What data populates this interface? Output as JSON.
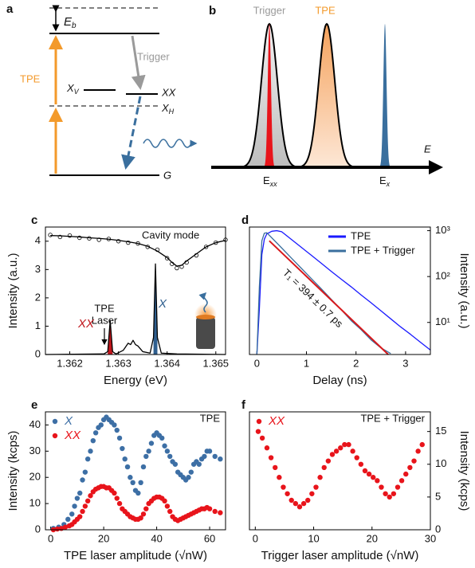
{
  "panel_a": {
    "label": "a",
    "eb": {
      "main": "E",
      "sub": "b"
    },
    "tpe": "TPE",
    "trigger": "Trigger",
    "xv": {
      "main": "X",
      "sub": "V"
    },
    "xx": "XX",
    "xh": {
      "main": "X",
      "sub": "H"
    },
    "g": "G"
  },
  "panel_b": {
    "label": "b",
    "trigger": "Trigger",
    "tpe": "TPE",
    "axis": "E",
    "exx": {
      "main": "E",
      "sub": "xx"
    },
    "ex": {
      "main": "E",
      "sub": "x"
    }
  },
  "chart_data": [
    {
      "label": "c",
      "type": "line",
      "xlabel": "Energy (eV)",
      "ylabel": "Intensity (a.u.)",
      "y_side": "left",
      "xlim": [
        1.3615,
        1.3652
      ],
      "xticks": [
        1.362,
        1.363,
        1.364,
        1.365
      ],
      "ylim": [
        0,
        4.5
      ],
      "yticks": [
        0,
        1,
        2,
        3,
        4
      ],
      "annotations": [
        "Cavity mode",
        "TPE",
        "Laser",
        "X",
        "XX"
      ],
      "series": [
        {
          "mode": "markers",
          "color": "#000000",
          "x": [
            1.3616,
            1.3618,
            1.362,
            1.3622,
            1.3624,
            1.3626,
            1.3628,
            1.363,
            1.3632,
            1.3634,
            1.3636,
            1.3638,
            1.364,
            1.3641,
            1.3642,
            1.3643,
            1.3644,
            1.3646,
            1.3648,
            1.365,
            1.3652
          ],
          "values": [
            4.22,
            4.15,
            4.2,
            4.12,
            4.1,
            4.05,
            4.08,
            4.0,
            3.95,
            3.92,
            3.8,
            3.7,
            3.4,
            3.2,
            3.05,
            3.1,
            3.25,
            3.5,
            3.8,
            3.95,
            4.05
          ]
        },
        {
          "mode": "line",
          "color": "#000000",
          "x": [
            1.3616,
            1.3618,
            1.362,
            1.3622,
            1.3624,
            1.3626,
            1.3628,
            1.363,
            1.3632,
            1.3634,
            1.3636,
            1.3638,
            1.364,
            1.3641,
            1.3642,
            1.3643,
            1.3644,
            1.3646,
            1.3648,
            1.365,
            1.3652
          ],
          "values": [
            4.2,
            4.19,
            4.17,
            4.15,
            4.12,
            4.1,
            4.07,
            4.03,
            3.98,
            3.92,
            3.82,
            3.65,
            3.42,
            3.25,
            3.12,
            3.15,
            3.3,
            3.55,
            3.8,
            3.95,
            4.03
          ]
        },
        {
          "mode": "fill",
          "color": "#c0161c",
          "x": [
            1.36278,
            1.36283,
            1.36288
          ],
          "values": [
            0.1,
            1.2,
            0.1
          ]
        },
        {
          "mode": "fill",
          "color": "#2f5f8f",
          "x": [
            1.36372,
            1.36376,
            1.3638
          ],
          "values": [
            0.6,
            3.2,
            0.6
          ]
        },
        {
          "mode": "line",
          "color": "#000000",
          "x": [
            1.3615,
            1.3627,
            1.36278,
            1.36283,
            1.36288,
            1.36295,
            1.3631,
            1.3632,
            1.36325,
            1.3633,
            1.36335,
            1.3634,
            1.3635,
            1.36365,
            1.36372,
            1.36376,
            1.3638,
            1.36388,
            1.3642,
            1.3652
          ],
          "values": [
            0,
            0.02,
            0.1,
            1.2,
            0.1,
            0.02,
            0.15,
            0.4,
            0.35,
            0.5,
            0.35,
            0.3,
            0.1,
            0.05,
            0.6,
            3.2,
            0.6,
            0.05,
            0.02,
            0
          ]
        }
      ]
    },
    {
      "label": "d",
      "type": "line",
      "xlabel": "Delay (ns)",
      "ylabel": "Intensity  (a.u.)",
      "y_side": "right",
      "log_y": true,
      "legend": "upper right",
      "xlim": [
        -0.15,
        3.5
      ],
      "xticks": [
        0,
        1,
        2,
        3
      ],
      "ylim": [
        2,
        1200
      ],
      "yticks": [
        {
          "value": 10,
          "label": "10¹"
        },
        {
          "value": 100,
          "label": "10²"
        },
        {
          "value": 1000,
          "label": "10³"
        }
      ],
      "annotations": [
        "T₁ = 394 ± 0.7 ps"
      ],
      "series": [
        {
          "name": "TPE",
          "mode": "line",
          "color": "#1a1aff",
          "x": [
            0,
            0.05,
            0.1,
            0.15,
            0.2,
            0.3,
            0.4,
            0.5,
            0.7,
            0.9,
            1.1,
            1.3,
            1.5,
            1.7,
            1.9,
            2.1,
            2.3,
            2.5,
            2.7,
            2.9,
            3.1,
            3.3,
            3.5
          ],
          "values": [
            2,
            20,
            300,
            650,
            850,
            970,
            1000,
            950,
            640,
            430,
            290,
            195,
            130,
            88,
            60,
            40,
            27,
            18,
            12,
            8,
            5.5,
            3.7,
            2.5
          ]
        },
        {
          "name": "TPE + Trigger",
          "mode": "line",
          "color": "#3a6f9e",
          "x": [
            0,
            0.05,
            0.1,
            0.15,
            0.2,
            0.3,
            0.5,
            0.7,
            0.9,
            1.1,
            1.3,
            1.5,
            1.7,
            1.9,
            2.1,
            2.3,
            2.5,
            2.7
          ],
          "values": [
            2,
            60,
            600,
            880,
            900,
            700,
            420,
            250,
            150,
            90,
            54,
            32,
            19,
            11,
            7,
            4.2,
            2.8,
            2.1
          ]
        },
        {
          "mode": "line",
          "color": "#d7191c",
          "x": [
            0.25,
            2.65
          ],
          "values": [
            600,
            2
          ]
        }
      ]
    },
    {
      "label": "e",
      "type": "scatter",
      "xlabel": "TPE laser amplitude (√nW)",
      "ylabel": "Intensity (kcps)",
      "y_side": "left",
      "legend": "upper left",
      "xlim": [
        -2,
        66
      ],
      "xticks": [
        0,
        20,
        40,
        60
      ],
      "ylim": [
        0,
        45
      ],
      "yticks": [
        0,
        10,
        20,
        30,
        40
      ],
      "annotations": [
        "TPE"
      ],
      "series": [
        {
          "name": "X",
          "mode": "markers",
          "color": "#3d6fa5",
          "x": [
            1,
            3,
            5,
            6.5,
            8,
            9,
            10,
            11,
            12,
            13,
            14,
            15,
            16,
            17,
            18,
            19,
            20,
            21,
            22,
            23,
            24,
            25,
            26,
            27,
            28,
            29,
            30,
            31,
            32,
            33,
            34,
            35,
            36,
            37,
            38,
            39,
            40,
            41,
            42,
            43,
            44,
            45,
            46,
            47,
            48,
            49,
            50,
            51,
            52,
            53,
            54,
            55,
            56,
            57,
            58,
            59,
            60,
            62,
            64
          ],
          "values": [
            0.5,
            1,
            2,
            4,
            6,
            9,
            12,
            14,
            19,
            22,
            27,
            30,
            34,
            37,
            39,
            40,
            42,
            43,
            42,
            41,
            40,
            38,
            35,
            31,
            27,
            24,
            20,
            18,
            15,
            14,
            18,
            24,
            28,
            30,
            33,
            36,
            37,
            36,
            35,
            32,
            30,
            28,
            26,
            25,
            22,
            21,
            20,
            19,
            20,
            22,
            25,
            26,
            25,
            27,
            28,
            30,
            30,
            28,
            27
          ]
        },
        {
          "name": "XX",
          "mode": "markers",
          "color": "#e8141b",
          "x": [
            1,
            2.5,
            4,
            5.5,
            7,
            8,
            9,
            10,
            11,
            12,
            13,
            14,
            15,
            16,
            17,
            18,
            19,
            20,
            21,
            22,
            23,
            24,
            25,
            26,
            27,
            28,
            29,
            30,
            31,
            32,
            33,
            34,
            35,
            36,
            37,
            38,
            39,
            40,
            41,
            42,
            43,
            44,
            45,
            46,
            47,
            48,
            49,
            50,
            51,
            52,
            53,
            54,
            55,
            56,
            57,
            58,
            59,
            60,
            62,
            64
          ],
          "values": [
            0,
            0.3,
            0.5,
            1,
            1.5,
            2,
            3,
            4,
            5,
            7,
            9,
            11,
            13,
            14.5,
            15.5,
            16,
            16.5,
            16.5,
            16,
            16,
            15,
            14,
            12,
            10,
            8,
            7,
            6,
            5,
            4.5,
            4,
            4,
            4.5,
            6,
            8,
            10,
            11,
            12,
            12.5,
            12.5,
            12,
            11,
            9,
            7,
            5,
            4,
            3.5,
            4,
            4.5,
            5,
            5.5,
            6,
            6.5,
            7,
            7.5,
            8,
            8,
            8.5,
            8,
            7,
            6.5
          ]
        }
      ]
    },
    {
      "label": "f",
      "type": "scatter",
      "xlabel": "Trigger laser amplitude (√nW)",
      "ylabel": "Intensity (kcps)",
      "y_side": "right",
      "legend": "upper left",
      "xlim": [
        -1,
        30
      ],
      "xticks": [
        0,
        10,
        20,
        30
      ],
      "ylim": [
        0,
        18
      ],
      "yticks": [
        0,
        5,
        10,
        15
      ],
      "annotations": [
        "TPE + Trigger"
      ],
      "series": [
        {
          "name": "XX",
          "mode": "markers",
          "color": "#e8141b",
          "x": [
            0.5,
            1.2,
            2,
            2.7,
            3.4,
            4.1,
            4.8,
            5.5,
            6.2,
            6.9,
            7.6,
            8.3,
            9,
            9.7,
            10.4,
            11.1,
            11.8,
            12.5,
            13.2,
            13.9,
            14.6,
            15.3,
            16,
            16.7,
            17.4,
            18.1,
            18.8,
            19.5,
            20.2,
            20.9,
            21.6,
            22.3,
            23,
            23.7,
            24.4,
            25.1,
            25.8,
            26.5,
            27.2,
            27.9,
            28.6
          ],
          "values": [
            15,
            14,
            12.5,
            11,
            9.5,
            8,
            6.5,
            5.5,
            4.5,
            4,
            3.5,
            4,
            4.5,
            5.5,
            6.5,
            8,
            9.5,
            10.5,
            11.5,
            12,
            12.5,
            13,
            13,
            12,
            11,
            10,
            9,
            8.5,
            8,
            7.5,
            6.5,
            5.5,
            5,
            5.5,
            6.5,
            7.5,
            8.5,
            9.5,
            10.5,
            12,
            13
          ]
        }
      ]
    }
  ]
}
